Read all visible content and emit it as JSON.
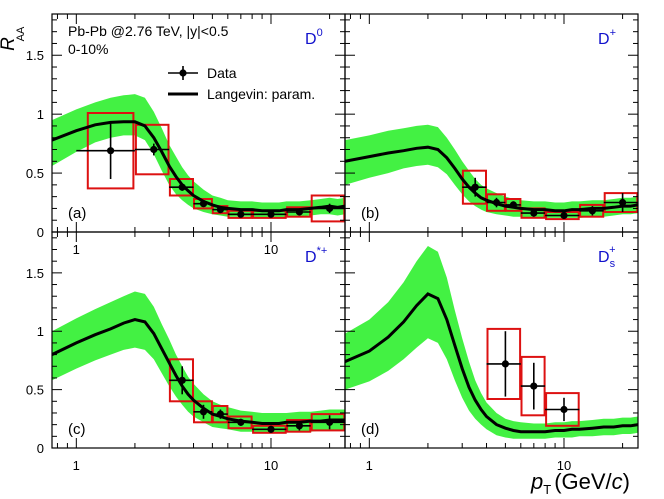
{
  "figure": {
    "ylabel_main": "R",
    "ylabel_sub": "AA",
    "xlabel_main": "p",
    "xlabel_sub": "T",
    "xlabel_unit_open": "(GeV/",
    "xlabel_unit_c": "c",
    "xlabel_unit_close": ")",
    "system_label": "Pb-Pb @2.76 TeV, |y|<0.5",
    "centrality_label": "0-10%",
    "legend": {
      "data_label": "Data",
      "model_label": "Langevin: param."
    },
    "colors": {
      "band": "#22ee22",
      "model": "#000000",
      "data": "#000000",
      "syst": "#dd1111",
      "species": "#1111cc"
    }
  },
  "chart_data": [
    {
      "panel_tag": "(a)",
      "species": "D",
      "species_sup": "0",
      "species_sub": "",
      "type": "scatter",
      "x_scale": "log",
      "xlim": [
        0.75,
        24
      ],
      "ylim": [
        0,
        1.85
      ],
      "x_ticks": [
        "1",
        "10"
      ],
      "y_ticks": [
        "0",
        "0.5",
        "1",
        "1.5"
      ],
      "data": [
        {
          "x": 1.5,
          "xlo": 1,
          "xhi": 2,
          "y": 0.69,
          "stat": 0.24,
          "syst": 0.32
        },
        {
          "x": 2.5,
          "xlo": 2,
          "xhi": 3,
          "y": 0.7,
          "stat": 0.05,
          "syst": 0.21
        },
        {
          "x": 3.5,
          "xlo": 3,
          "xhi": 4,
          "y": 0.38,
          "stat": 0.03,
          "syst": 0.07
        },
        {
          "x": 4.5,
          "xlo": 4,
          "xhi": 5,
          "y": 0.24,
          "stat": 0.02,
          "syst": 0.04
        },
        {
          "x": 5.5,
          "xlo": 5,
          "xhi": 6,
          "y": 0.19,
          "stat": 0.02,
          "syst": 0.03
        },
        {
          "x": 7,
          "xlo": 6,
          "xhi": 8,
          "y": 0.15,
          "stat": 0.02,
          "syst": 0.03
        },
        {
          "x": 10,
          "xlo": 8,
          "xhi": 12,
          "y": 0.15,
          "stat": 0.02,
          "syst": 0.03
        },
        {
          "x": 14,
          "xlo": 12,
          "xhi": 16,
          "y": 0.17,
          "stat": 0.03,
          "syst": 0.04
        },
        {
          "x": 20,
          "xlo": 16,
          "xhi": 24,
          "y": 0.2,
          "stat": 0.04,
          "syst": 0.11
        }
      ],
      "model": {
        "x": [
          0.75,
          1,
          1.25,
          1.5,
          1.75,
          2,
          2.25,
          2.5,
          2.75,
          3,
          3.25,
          3.5,
          3.75,
          4,
          4.5,
          5,
          5.5,
          6,
          7,
          8,
          9,
          10,
          11,
          12,
          14,
          16,
          18,
          20,
          22,
          24
        ],
        "y": [
          0.78,
          0.86,
          0.91,
          0.93,
          0.935,
          0.935,
          0.9,
          0.8,
          0.68,
          0.56,
          0.47,
          0.4,
          0.35,
          0.31,
          0.26,
          0.23,
          0.21,
          0.2,
          0.19,
          0.19,
          0.18,
          0.18,
          0.18,
          0.19,
          0.19,
          0.2,
          0.21,
          0.22,
          0.21,
          0.22
        ],
        "lo": [
          0.56,
          0.68,
          0.76,
          0.8,
          0.82,
          0.82,
          0.78,
          0.66,
          0.52,
          0.4,
          0.32,
          0.27,
          0.23,
          0.2,
          0.17,
          0.15,
          0.14,
          0.13,
          0.13,
          0.13,
          0.12,
          0.12,
          0.12,
          0.13,
          0.13,
          0.14,
          0.15,
          0.15,
          0.14,
          0.15
        ],
        "hi": [
          0.95,
          1.04,
          1.1,
          1.14,
          1.16,
          1.17,
          1.14,
          1.02,
          0.88,
          0.74,
          0.64,
          0.55,
          0.48,
          0.43,
          0.36,
          0.31,
          0.29,
          0.27,
          0.26,
          0.26,
          0.25,
          0.25,
          0.25,
          0.26,
          0.26,
          0.27,
          0.28,
          0.29,
          0.28,
          0.29
        ]
      }
    },
    {
      "panel_tag": "(b)",
      "species": "D",
      "species_sup": "+",
      "species_sub": "",
      "type": "scatter",
      "x_scale": "log",
      "xlim": [
        0.75,
        24
      ],
      "ylim": [
        0,
        1.85
      ],
      "x_ticks": [],
      "y_ticks": [],
      "data": [
        {
          "x": 3.5,
          "xlo": 3,
          "xhi": 4,
          "y": 0.38,
          "stat": 0.08,
          "syst": 0.14
        },
        {
          "x": 4.5,
          "xlo": 4,
          "xhi": 5,
          "y": 0.25,
          "stat": 0.04,
          "syst": 0.07
        },
        {
          "x": 5.5,
          "xlo": 5,
          "xhi": 6,
          "y": 0.23,
          "stat": 0.03,
          "syst": 0.05
        },
        {
          "x": 7,
          "xlo": 6,
          "xhi": 8,
          "y": 0.16,
          "stat": 0.03,
          "syst": 0.04
        },
        {
          "x": 10,
          "xlo": 8,
          "xhi": 12,
          "y": 0.14,
          "stat": 0.03,
          "syst": 0.03
        },
        {
          "x": 14,
          "xlo": 12,
          "xhi": 16,
          "y": 0.18,
          "stat": 0.04,
          "syst": 0.05
        },
        {
          "x": 20,
          "xlo": 16,
          "xhi": 24,
          "y": 0.25,
          "stat": 0.08,
          "syst": 0.08
        }
      ],
      "model": {
        "x": [
          0.75,
          1,
          1.25,
          1.5,
          1.75,
          2,
          2.25,
          2.5,
          2.75,
          3,
          3.25,
          3.5,
          3.75,
          4,
          4.5,
          5,
          5.5,
          6,
          7,
          8,
          9,
          10,
          11,
          12,
          14,
          16,
          18,
          20,
          22,
          24
        ],
        "y": [
          0.6,
          0.64,
          0.67,
          0.69,
          0.71,
          0.72,
          0.7,
          0.63,
          0.54,
          0.45,
          0.38,
          0.33,
          0.29,
          0.27,
          0.24,
          0.22,
          0.21,
          0.2,
          0.19,
          0.19,
          0.18,
          0.18,
          0.19,
          0.19,
          0.2,
          0.2,
          0.21,
          0.22,
          0.22,
          0.23
        ],
        "lo": [
          0.4,
          0.46,
          0.5,
          0.54,
          0.56,
          0.57,
          0.55,
          0.49,
          0.4,
          0.32,
          0.26,
          0.22,
          0.19,
          0.17,
          0.15,
          0.14,
          0.13,
          0.13,
          0.12,
          0.12,
          0.12,
          0.12,
          0.12,
          0.12,
          0.13,
          0.13,
          0.14,
          0.15,
          0.15,
          0.16
        ],
        "hi": [
          0.78,
          0.82,
          0.86,
          0.88,
          0.9,
          0.91,
          0.89,
          0.8,
          0.7,
          0.6,
          0.52,
          0.45,
          0.4,
          0.37,
          0.33,
          0.3,
          0.28,
          0.27,
          0.26,
          0.26,
          0.25,
          0.25,
          0.26,
          0.26,
          0.27,
          0.27,
          0.28,
          0.29,
          0.29,
          0.3
        ]
      }
    },
    {
      "panel_tag": "(c)",
      "species": "D",
      "species_sup": "*+",
      "species_sub": "",
      "type": "scatter",
      "x_scale": "log",
      "xlim": [
        0.75,
        24
      ],
      "ylim": [
        0,
        1.85
      ],
      "x_ticks": [
        "1",
        "10"
      ],
      "y_ticks": [
        "0",
        "0.5",
        "1",
        "1.5"
      ],
      "data": [
        {
          "x": 3.5,
          "xlo": 3,
          "xhi": 4,
          "y": 0.58,
          "stat": 0.12,
          "syst": 0.18
        },
        {
          "x": 4.5,
          "xlo": 4,
          "xhi": 5,
          "y": 0.31,
          "stat": 0.06,
          "syst": 0.09
        },
        {
          "x": 5.5,
          "xlo": 5,
          "xhi": 6,
          "y": 0.29,
          "stat": 0.04,
          "syst": 0.07
        },
        {
          "x": 7,
          "xlo": 6,
          "xhi": 8,
          "y": 0.22,
          "stat": 0.03,
          "syst": 0.05
        },
        {
          "x": 10,
          "xlo": 8,
          "xhi": 12,
          "y": 0.16,
          "stat": 0.03,
          "syst": 0.03
        },
        {
          "x": 14,
          "xlo": 12,
          "xhi": 16,
          "y": 0.19,
          "stat": 0.04,
          "syst": 0.05
        },
        {
          "x": 20,
          "xlo": 16,
          "xhi": 24,
          "y": 0.22,
          "stat": 0.06,
          "syst": 0.07
        }
      ],
      "model": {
        "x": [
          0.75,
          1,
          1.25,
          1.5,
          1.75,
          2,
          2.25,
          2.5,
          2.75,
          3,
          3.25,
          3.5,
          3.75,
          4,
          4.5,
          5,
          5.5,
          6,
          7,
          8,
          9,
          10,
          11,
          12,
          14,
          16,
          18,
          20,
          22,
          24
        ],
        "y": [
          0.8,
          0.9,
          0.97,
          1.02,
          1.07,
          1.1,
          1.08,
          0.98,
          0.85,
          0.73,
          0.62,
          0.53,
          0.46,
          0.41,
          0.34,
          0.29,
          0.27,
          0.25,
          0.23,
          0.22,
          0.21,
          0.21,
          0.21,
          0.22,
          0.22,
          0.23,
          0.23,
          0.24,
          0.24,
          0.24
        ],
        "lo": [
          0.58,
          0.68,
          0.75,
          0.8,
          0.84,
          0.86,
          0.84,
          0.76,
          0.64,
          0.53,
          0.44,
          0.37,
          0.31,
          0.27,
          0.22,
          0.18,
          0.17,
          0.16,
          0.14,
          0.14,
          0.13,
          0.13,
          0.13,
          0.14,
          0.14,
          0.14,
          0.15,
          0.15,
          0.15,
          0.16
        ],
        "hi": [
          1.0,
          1.11,
          1.19,
          1.25,
          1.3,
          1.34,
          1.32,
          1.21,
          1.06,
          0.93,
          0.8,
          0.7,
          0.61,
          0.55,
          0.46,
          0.4,
          0.37,
          0.35,
          0.32,
          0.31,
          0.3,
          0.3,
          0.3,
          0.3,
          0.31,
          0.31,
          0.32,
          0.33,
          0.33,
          0.33
        ]
      }
    },
    {
      "panel_tag": "(d)",
      "species": "D",
      "species_sup": "+",
      "species_sub": "s",
      "type": "scatter",
      "x_scale": "log",
      "xlim": [
        0.75,
        24
      ],
      "ylim": [
        0,
        1.85
      ],
      "x_ticks": [
        "1",
        "10"
      ],
      "y_ticks": [],
      "data": [
        {
          "x": 5,
          "xlo": 4,
          "xhi": 6,
          "y": 0.72,
          "stat": 0.28,
          "syst": 0.3
        },
        {
          "x": 7,
          "xlo": 6,
          "xhi": 8,
          "y": 0.53,
          "stat": 0.2,
          "syst": 0.25
        },
        {
          "x": 10,
          "xlo": 8,
          "xhi": 12,
          "y": 0.33,
          "stat": 0.1,
          "syst": 0.14
        }
      ],
      "model": {
        "x": [
          0.75,
          1,
          1.25,
          1.5,
          1.75,
          2,
          2.25,
          2.5,
          2.75,
          3,
          3.25,
          3.5,
          3.75,
          4,
          4.5,
          5,
          5.5,
          6,
          7,
          8,
          9,
          10,
          11,
          12,
          14,
          16,
          18,
          20,
          22,
          24
        ],
        "y": [
          0.74,
          0.83,
          0.95,
          1.08,
          1.22,
          1.32,
          1.28,
          1.1,
          0.88,
          0.68,
          0.52,
          0.41,
          0.33,
          0.27,
          0.2,
          0.17,
          0.15,
          0.14,
          0.14,
          0.14,
          0.15,
          0.15,
          0.16,
          0.16,
          0.17,
          0.18,
          0.18,
          0.19,
          0.19,
          0.2
        ],
        "lo": [
          0.5,
          0.57,
          0.66,
          0.76,
          0.86,
          0.94,
          0.9,
          0.76,
          0.58,
          0.43,
          0.32,
          0.25,
          0.2,
          0.16,
          0.11,
          0.09,
          0.08,
          0.08,
          0.08,
          0.08,
          0.09,
          0.09,
          0.09,
          0.1,
          0.1,
          0.11,
          0.11,
          0.12,
          0.12,
          0.13
        ],
        "hi": [
          0.98,
          1.1,
          1.25,
          1.42,
          1.6,
          1.73,
          1.68,
          1.46,
          1.18,
          0.94,
          0.74,
          0.58,
          0.47,
          0.39,
          0.3,
          0.25,
          0.23,
          0.22,
          0.21,
          0.21,
          0.22,
          0.22,
          0.23,
          0.23,
          0.24,
          0.25,
          0.25,
          0.26,
          0.26,
          0.27
        ]
      }
    }
  ]
}
